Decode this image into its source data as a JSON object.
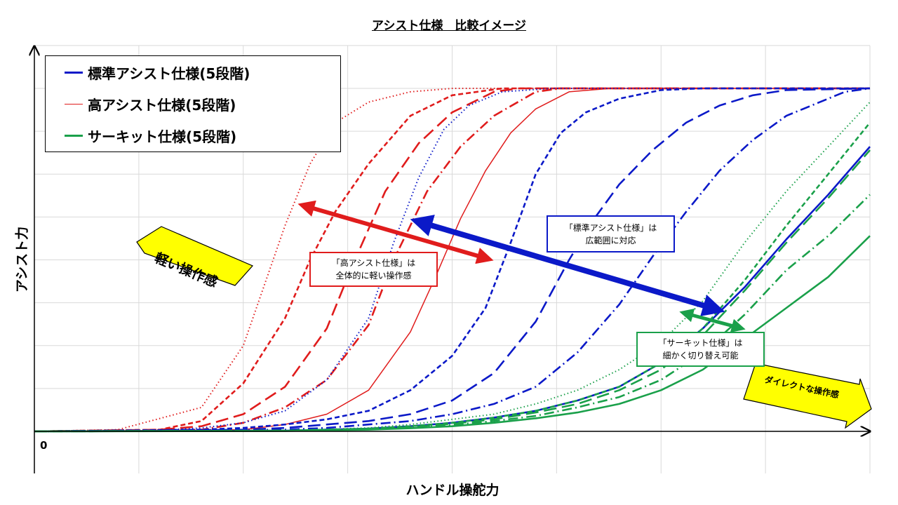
{
  "title": "アシスト仕様　比較イメージ",
  "chart_data": {
    "type": "line",
    "ylabel": "アシスト力",
    "xlabel": "ハンドル操舵力",
    "origin_label": "0",
    "xlim": [
      0,
      100
    ],
    "ylim": [
      0,
      100
    ],
    "grid": true,
    "legend_position": "top-left",
    "colors": {
      "standard": "#0b19c8",
      "high": "#e01c1c",
      "circuit": "#1aa04a"
    },
    "legend": [
      {
        "label": "標準アシスト仕様(5段階)",
        "color": "#0b19c8"
      },
      {
        "label": "高アシスト仕様(5段階)",
        "color": "#e01c1c"
      },
      {
        "label": "サーキット仕様(5段階)",
        "color": "#1aa04a"
      }
    ],
    "series": [
      {
        "group": "high",
        "dash": "dotted",
        "x": [
          0,
          10,
          20,
          25,
          30,
          33,
          36,
          40,
          45,
          50,
          52,
          100
        ],
        "y": [
          0,
          0.5,
          7,
          25,
          60,
          78,
          90,
          96,
          99,
          100,
          100,
          100
        ]
      },
      {
        "group": "high",
        "dash": "short-dash",
        "x": [
          0,
          15,
          20,
          25,
          30,
          33,
          36,
          40,
          45,
          50,
          56,
          100
        ],
        "y": [
          0,
          0.5,
          3,
          14,
          33,
          50,
          64,
          78,
          92,
          98,
          100,
          100
        ]
      },
      {
        "group": "high",
        "dash": "long-dash",
        "x": [
          0,
          15,
          20,
          25,
          30,
          35,
          38,
          42,
          46,
          50,
          55,
          58,
          100
        ],
        "y": [
          0,
          0.5,
          1.5,
          5,
          13,
          30,
          48,
          70,
          84,
          93,
          99,
          100,
          100
        ]
      },
      {
        "group": "high",
        "dash": "dash-dot",
        "x": [
          0,
          20,
          25,
          30,
          35,
          40,
          43,
          47,
          51,
          55,
          60,
          63,
          100
        ],
        "y": [
          0,
          0.5,
          2.5,
          7,
          15,
          31,
          50,
          70,
          83,
          92,
          99,
          100,
          100
        ]
      },
      {
        "group": "high",
        "dash": "solid",
        "x": [
          0,
          25,
          30,
          35,
          40,
          45,
          48,
          51,
          54,
          57,
          60,
          64,
          69,
          100
        ],
        "y": [
          0,
          0.5,
          2,
          5,
          12,
          29,
          45,
          62,
          76,
          87,
          94,
          99,
          100,
          100
        ]
      },
      {
        "group": "standard",
        "dash": "dotted",
        "x": [
          0,
          15,
          20,
          25,
          30,
          35,
          40,
          43,
          46,
          49,
          52,
          56,
          62,
          100
        ],
        "y": [
          0,
          0.3,
          1,
          2.5,
          6,
          15,
          33,
          55,
          74,
          88,
          95,
          99,
          100,
          100
        ]
      },
      {
        "group": "standard",
        "dash": "short-dash",
        "x": [
          0,
          20,
          25,
          30,
          35,
          40,
          45,
          50,
          54,
          57,
          60,
          63,
          66,
          70,
          75,
          80,
          100
        ],
        "y": [
          0,
          0.5,
          1,
          2,
          3.5,
          6,
          12,
          22,
          36,
          55,
          75,
          87,
          93,
          97,
          99.5,
          100,
          100
        ]
      },
      {
        "group": "standard",
        "dash": "long-dash",
        "x": [
          0,
          25,
          30,
          35,
          40,
          45,
          50,
          55,
          60,
          64,
          67,
          70,
          74,
          78,
          82,
          86,
          90,
          100
        ],
        "y": [
          0,
          0.5,
          1,
          2,
          3,
          5,
          9,
          17,
          32,
          50,
          62,
          72,
          82,
          90,
          95,
          98,
          99.5,
          100
        ]
      },
      {
        "group": "standard",
        "dash": "dash-dot",
        "x": [
          0,
          30,
          35,
          40,
          45,
          50,
          55,
          60,
          65,
          70,
          74,
          78,
          82,
          86,
          90,
          94,
          97,
          100
        ],
        "y": [
          0,
          0.5,
          1,
          2,
          3,
          5,
          8,
          13,
          23,
          37,
          51,
          64,
          76,
          85,
          92,
          96,
          99,
          100
        ]
      },
      {
        "group": "standard",
        "dash": "solid",
        "x": [
          0,
          30,
          40,
          45,
          50,
          55,
          60,
          65,
          70,
          75,
          80,
          85,
          90,
          95,
          100
        ],
        "y": [
          0,
          0.2,
          0.8,
          1.5,
          2.5,
          4,
          6,
          9,
          13,
          20,
          30,
          42,
          56,
          69,
          83
        ]
      },
      {
        "group": "circuit",
        "dash": "dotted",
        "x": [
          0,
          30,
          40,
          45,
          50,
          55,
          60,
          65,
          70,
          75,
          80,
          85,
          90,
          95,
          100
        ],
        "y": [
          0,
          0.2,
          1,
          2,
          3.5,
          5,
          8,
          12,
          18,
          26,
          38,
          55,
          70,
          83,
          96
        ]
      },
      {
        "group": "circuit",
        "dash": "short-dash",
        "x": [
          0,
          30,
          40,
          45,
          50,
          55,
          60,
          65,
          70,
          75,
          80,
          85,
          90,
          95,
          100
        ],
        "y": [
          0,
          0.2,
          0.8,
          1.5,
          2.5,
          4,
          6,
          9,
          13,
          20,
          30,
          44,
          60,
          75,
          90
        ]
      },
      {
        "group": "circuit",
        "dash": "long-dash",
        "x": [
          0,
          30,
          40,
          45,
          50,
          55,
          60,
          65,
          70,
          75,
          80,
          85,
          90,
          95,
          100
        ],
        "y": [
          0,
          0.2,
          0.7,
          1.3,
          2.2,
          3.5,
          5.5,
          8,
          12,
          18,
          28,
          41,
          55,
          68,
          82
        ]
      },
      {
        "group": "circuit",
        "dash": "dash-dot",
        "x": [
          0,
          30,
          40,
          45,
          50,
          55,
          60,
          65,
          70,
          75,
          80,
          85,
          90,
          95,
          100
        ],
        "y": [
          0,
          0.2,
          0.6,
          1.1,
          1.9,
          3,
          4.5,
          7,
          10,
          15,
          23,
          34,
          47,
          57,
          69
        ]
      },
      {
        "group": "circuit",
        "dash": "solid",
        "x": [
          0,
          30,
          40,
          45,
          50,
          55,
          60,
          65,
          70,
          75,
          80,
          85,
          90,
          95,
          100
        ],
        "y": [
          0,
          0.1,
          0.5,
          0.9,
          1.5,
          2.5,
          3.8,
          5.5,
          8,
          12,
          18,
          27,
          36,
          45,
          57
        ]
      }
    ],
    "annotations": {
      "high_note": "「高アシスト仕様」は\n全体的に軽い操作感",
      "standard_note": "「標準アシスト仕様」は\n広範囲に対応",
      "circuit_note": "「サーキット仕様」は\n細かく切り替え可能",
      "light_badge": "軽い操作感",
      "direct_badge": "ダイレクトな操作感"
    }
  }
}
